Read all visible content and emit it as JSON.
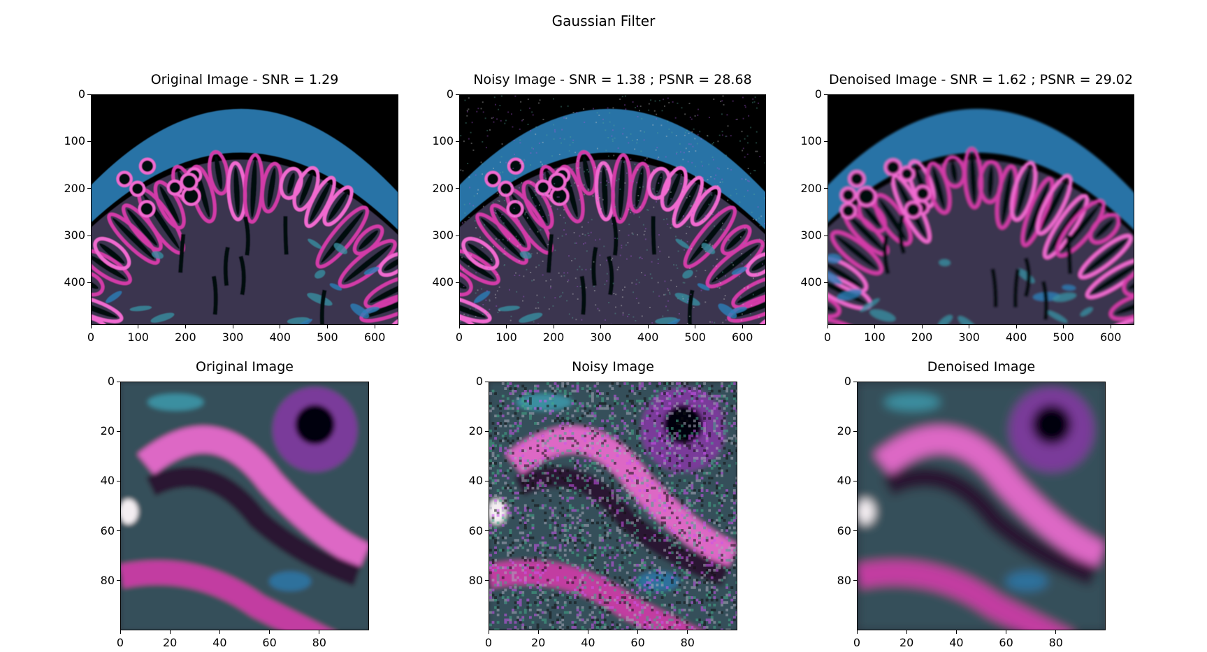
{
  "suptitle": "Gaussian Filter",
  "colors": {
    "background": "#000000",
    "tissue_blue": "#2c7fb8",
    "tissue_magenta": "#d23aa8",
    "tissue_pink": "#f06ad0",
    "tissue_teal": "#3a8fa0",
    "dark_gap": "#05070c"
  },
  "chart_data": [
    {
      "type": "image",
      "title": "Original Image - SNR = 1.29",
      "xticks": [
        "0",
        "100",
        "200",
        "300",
        "400",
        "500",
        "600"
      ],
      "yticks": [
        "0",
        "100",
        "200",
        "300",
        "400"
      ],
      "xlim": [
        0,
        650
      ],
      "ylim": [
        490,
        0
      ],
      "style": "full-clean"
    },
    {
      "type": "image",
      "title": "Noisy Image - SNR = 1.38 ; PSNR = 28.68",
      "xticks": [
        "0",
        "100",
        "200",
        "300",
        "400",
        "500",
        "600"
      ],
      "yticks": [
        "0",
        "100",
        "200",
        "300",
        "400"
      ],
      "xlim": [
        0,
        650
      ],
      "ylim": [
        490,
        0
      ],
      "style": "full-noisy"
    },
    {
      "type": "image",
      "title": "Denoised Image - SNR = 1.62 ; PSNR = 29.02",
      "xticks": [
        "0",
        "100",
        "200",
        "300",
        "400",
        "500",
        "600"
      ],
      "yticks": [
        "0",
        "100",
        "200",
        "300",
        "400"
      ],
      "xlim": [
        0,
        650
      ],
      "ylim": [
        490,
        0
      ],
      "style": "full-denoised"
    },
    {
      "type": "image",
      "title": "Original Image",
      "xticks": [
        "0",
        "20",
        "40",
        "60",
        "80"
      ],
      "yticks": [
        "0",
        "20",
        "40",
        "60",
        "80"
      ],
      "xlim": [
        0,
        100
      ],
      "ylim": [
        100,
        0
      ],
      "style": "crop-clean"
    },
    {
      "type": "image",
      "title": "Noisy Image",
      "xticks": [
        "0",
        "20",
        "40",
        "60",
        "80"
      ],
      "yticks": [
        "0",
        "20",
        "40",
        "60",
        "80"
      ],
      "xlim": [
        0,
        100
      ],
      "ylim": [
        100,
        0
      ],
      "style": "crop-noisy"
    },
    {
      "type": "image",
      "title": "Denoised Image",
      "xticks": [
        "0",
        "20",
        "40",
        "60",
        "80"
      ],
      "yticks": [
        "0",
        "20",
        "40",
        "60",
        "80"
      ],
      "xlim": [
        0,
        100
      ],
      "ylim": [
        100,
        0
      ],
      "style": "crop-denoised"
    }
  ]
}
